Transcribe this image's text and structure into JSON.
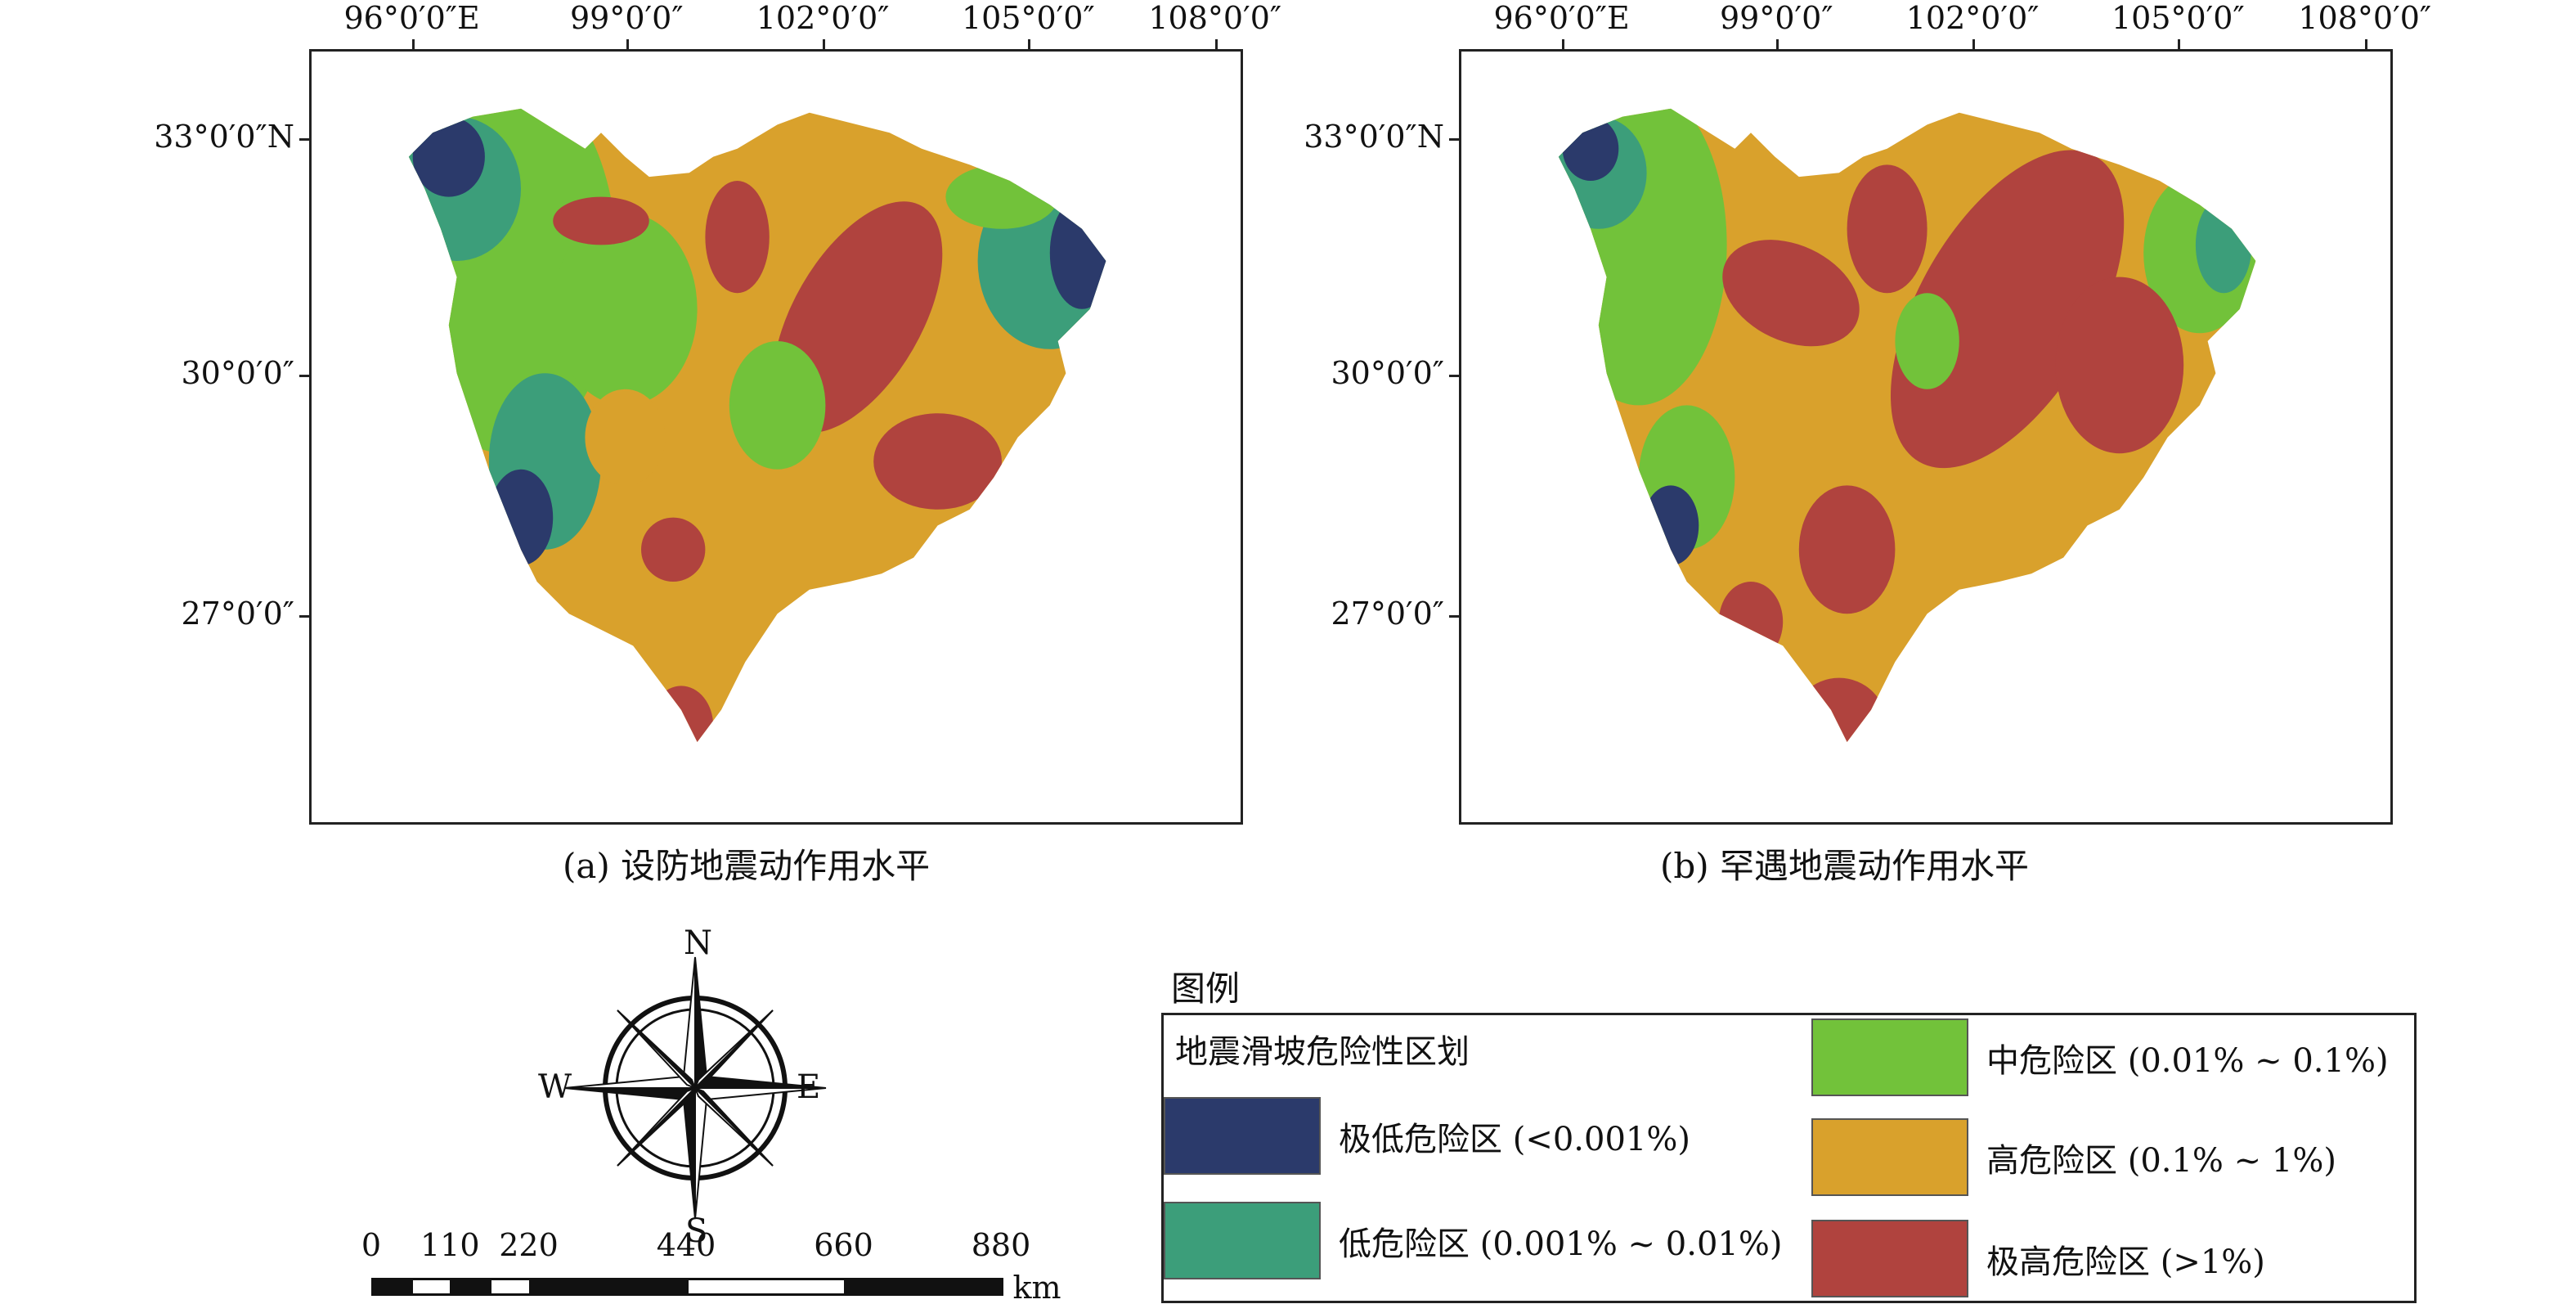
{
  "panels": [
    {
      "id": "a",
      "caption": "(a) 设防地震动作用水平",
      "x_ticks": [
        "96°0′0″E",
        "99°0′0″",
        "102°0′0″",
        "105°0′0″",
        "108°0′0″"
      ],
      "y_ticks": [
        "33°0′0″N",
        "30°0′0″",
        "27°0′0″"
      ]
    },
    {
      "id": "b",
      "caption": "(b) 罕遇地震动作用水平",
      "x_ticks": [
        "96°0′0″E",
        "99°0′0″",
        "102°0′0″",
        "105°0′0″",
        "108°0′0″"
      ],
      "y_ticks": [
        "33°0′0″N",
        "30°0′0″",
        "27°0′0″"
      ]
    }
  ],
  "compass": {
    "n": "N",
    "s": "S",
    "e": "E",
    "w": "W"
  },
  "scalebar": {
    "labels": [
      "0",
      "110",
      "220",
      "440",
      "660",
      "880"
    ],
    "unit": "km"
  },
  "legend": {
    "title": "图例",
    "subtitle": "地震滑坡危险性区划",
    "items": [
      {
        "label": "极低危险区 (<0.001%)",
        "color": "#2b3a6b"
      },
      {
        "label": "低危险区 (0.001% ~ 0.01%)",
        "color": "#3c9e7a"
      },
      {
        "label": "中危险区 (0.01% ~ 0.1%)",
        "color": "#72c23a"
      },
      {
        "label": "高危险区 (0.1% ~ 1%)",
        "color": "#d9a12c"
      },
      {
        "label": "极高危险区 (>1%)",
        "color": "#b0433e"
      }
    ]
  }
}
